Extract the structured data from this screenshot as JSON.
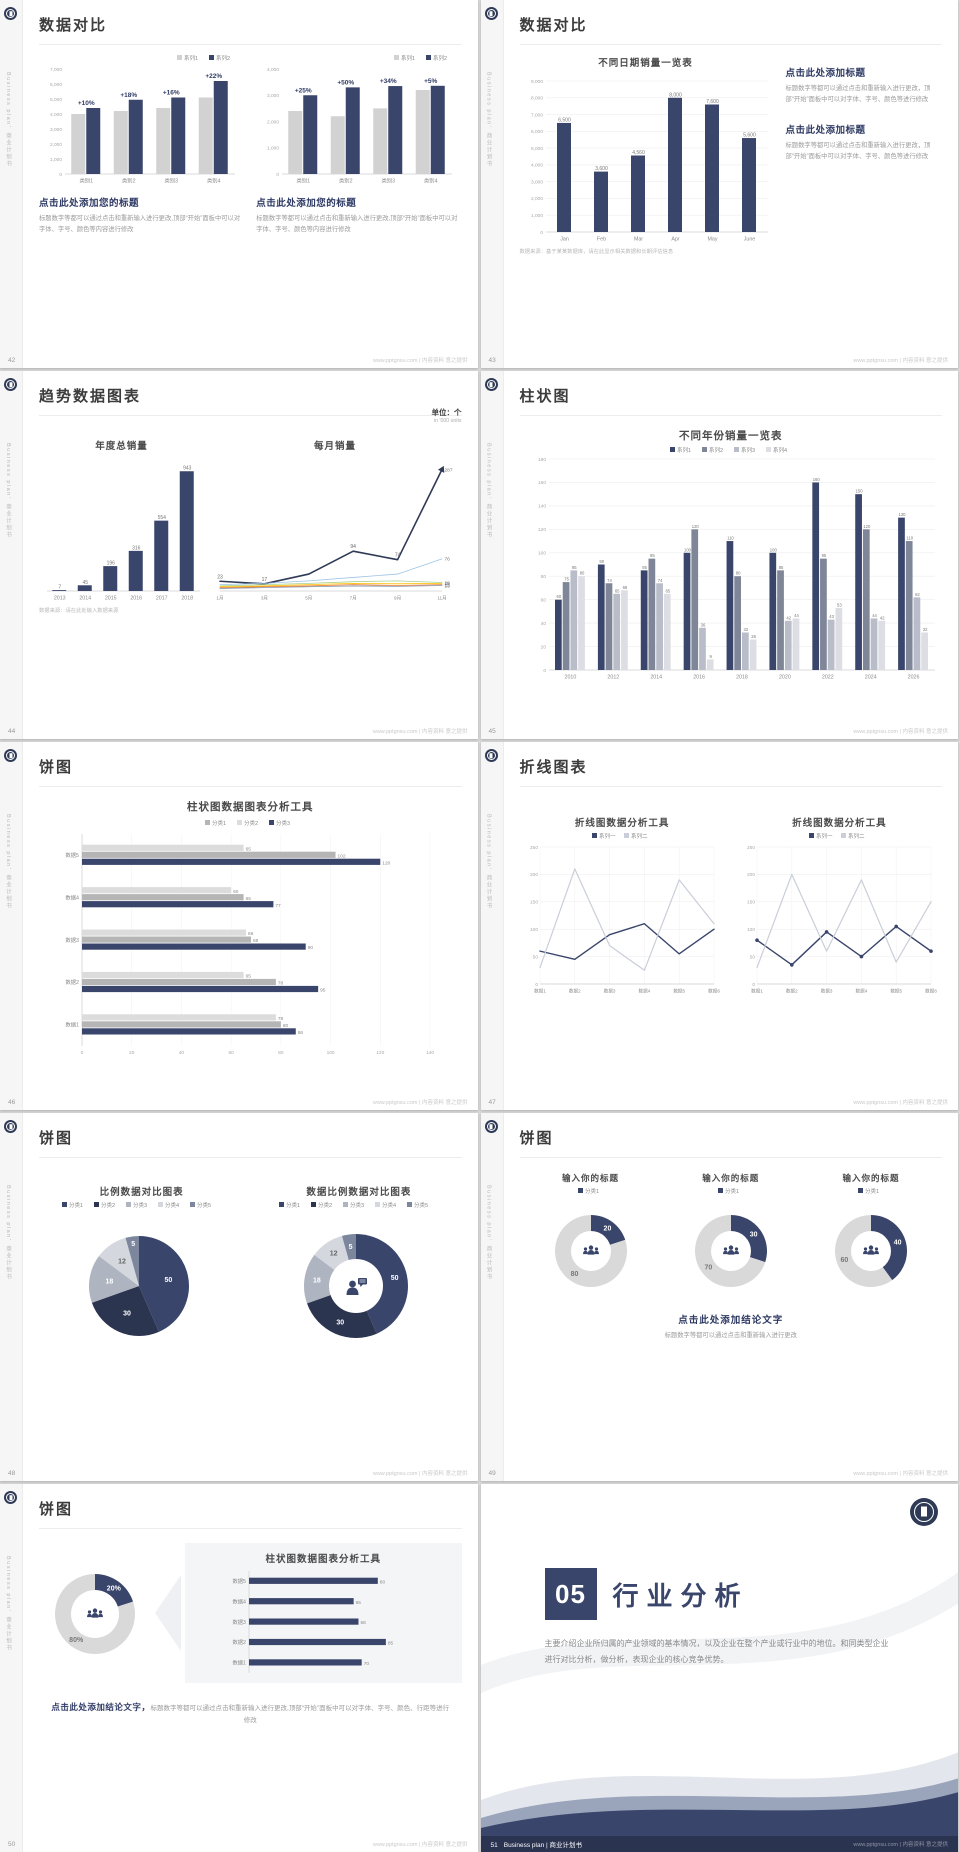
{
  "watermark": "www.pptgnsu.com | 内容资料 意之提供",
  "strip": {
    "vertical_text": "Business plan．商业计划书"
  },
  "colors": {
    "navy": "#39456b",
    "heading": "#2e3a64",
    "bar_gray": "#d2d2d2"
  },
  "slides": [
    {
      "page_no": "42",
      "title": "数据对比",
      "panels": [
        {
          "heading": "点击此处添加您的标题",
          "body": "标题数字等都可以通过点击和重新输入进行更改,顶部“开始”面板中可以对字体、字号、颜色等内容进行修改",
          "chart": {
            "type": "column",
            "ymax": 7000,
            "yticks": [
              0,
              1000,
              2000,
              3000,
              4000,
              5000,
              6000,
              7000
            ],
            "legend": [
              {
                "label": "系列1",
                "color": "#d2d2d2"
              },
              {
                "label": "系列2",
                "color": "#39456b"
              }
            ],
            "legendAlign": "right",
            "categories": [
              "类别1",
              "类别2",
              "类别3",
              "类别4"
            ],
            "series": [
              {
                "color": "#d2d2d2",
                "values": [
                  4000,
                  4200,
                  4400,
                  5100
                ]
              },
              {
                "color": "#39456b",
                "values": [
                  4400,
                  4950,
                  5100,
                  6200
                ]
              }
            ],
            "annotations": [
              {
                "i": 0,
                "text": "+10%"
              },
              {
                "i": 1,
                "text": "+18%"
              },
              {
                "i": 2,
                "text": "+16%"
              },
              {
                "i": 3,
                "text": "+22%"
              }
            ]
          }
        },
        {
          "heading": "点击此处添加您的标题",
          "body": "标题数字等都可以通过点击和重新输入进行更改,顶部“开始”面板中可以对字体、字号、颜色等内容进行修改",
          "chart": {
            "type": "column",
            "ymax": 4000,
            "yticks": [
              0,
              1000,
              2000,
              3000,
              4000
            ],
            "legend": [
              {
                "label": "系列1",
                "color": "#d2d2d2"
              },
              {
                "label": "系列2",
                "color": "#39456b"
              }
            ],
            "legendAlign": "right",
            "categories": [
              "类别1",
              "类别2",
              "类别3",
              "类别4"
            ],
            "series": [
              {
                "color": "#d2d2d2",
                "values": [
                  2400,
                  2200,
                  2500,
                  3200
                ]
              },
              {
                "color": "#39456b",
                "values": [
                  3000,
                  3300,
                  3350,
                  3360
                ]
              }
            ],
            "annotations": [
              {
                "i": 0,
                "text": "+25%"
              },
              {
                "i": 1,
                "text": "+50%"
              },
              {
                "i": 2,
                "text": "+34%"
              },
              {
                "i": 3,
                "text": "+5%"
              }
            ]
          }
        }
      ]
    },
    {
      "page_no": "43",
      "title": "数据对比",
      "chart_title": "不同日期销量一览表",
      "chart": {
        "type": "column",
        "ymax": 9000,
        "grid": true,
        "valueLabels": true,
        "yticks": [
          0,
          1000,
          2000,
          3000,
          4000,
          5000,
          6000,
          7000,
          8000,
          9000
        ],
        "categories": [
          "Jan",
          "Feb",
          "Mar",
          "Apr",
          "May",
          "June"
        ],
        "series": [
          {
            "color": "#39456b",
            "values": [
              6500,
              3600,
              4560,
              8000,
              7600,
              5600
            ]
          }
        ]
      },
      "source_note": "数据来源：基于某某数据库，请在此显示相关数据和长期评估信息",
      "blocks": [
        {
          "heading": "点击此处添加标题",
          "body": "标题数字等都可以通过点击和重新输入进行更改，顶部“开始”面板中可以对字体、字号、颜色等进行修改"
        },
        {
          "heading": "点击此处添加标题",
          "body": "标题数字等都可以通过点击和重新输入进行更改，顶部“开始”面板中可以对字体、字号、颜色等进行修改"
        }
      ]
    },
    {
      "page_no": "44",
      "title": "趋势数据图表",
      "unit_label": "单位：个",
      "unit_sub": "in '000 units",
      "left_title": "年度总销量",
      "right_title": "每月销量",
      "bar_chart": {
        "type": "column",
        "ymax": 1000,
        "valueLabels": true,
        "categories": [
          "2013",
          "2014",
          "2015",
          "2016",
          "2017",
          "2018"
        ],
        "series": [
          {
            "color": "#39456b",
            "values": [
              7,
              45,
              196,
              316,
              554,
              943
            ]
          }
        ]
      },
      "line_chart": {
        "type": "line",
        "ymax": 300,
        "endLabels": true,
        "categories": [
          "1月",
          "3月",
          "5月",
          "7月",
          "9月",
          "11月"
        ],
        "series": [
          {
            "color": "#2f3a56",
            "width": 1.6,
            "arrow": true,
            "values": [
              23,
              17,
              40,
              94,
              74,
              287
            ],
            "pointLabels": [
              "23",
              "17",
              null,
              "94",
              "74",
              null
            ],
            "endLabel": "287"
          },
          {
            "color": "#9dc3e6",
            "width": 0.8,
            "values": [
              15,
              18,
              24,
              32,
              40,
              76
            ],
            "endLabel": "76"
          },
          {
            "color": "#a9d18e",
            "width": 0.8,
            "values": [
              12,
              15,
              18,
              22,
              24,
              20
            ],
            "endLabel": "20"
          },
          {
            "color": "#ffc000",
            "width": 0.8,
            "values": [
              10,
              12,
              15,
              18,
              17,
              18
            ],
            "endLabel": "18"
          },
          {
            "color": "#ed7d31",
            "width": 0.8,
            "values": [
              8,
              10,
              12,
              15,
              13,
              15
            ],
            "endLabel": "15"
          },
          {
            "color": "#8497b0",
            "width": 0.8,
            "values": [
              6,
              8,
              10,
              12,
              11,
              13
            ],
            "endLabel": "13"
          }
        ]
      },
      "source_note": "数据来源：请在此处输入数据来源"
    },
    {
      "page_no": "45",
      "title": "柱状图",
      "chart_title": "不同年份销量一览表",
      "chart": {
        "type": "column",
        "ymax": 180,
        "grid": true,
        "valueLabels": true,
        "yticks": [
          0,
          20,
          40,
          60,
          80,
          100,
          120,
          140,
          160,
          180
        ],
        "legend": [
          {
            "label": "系列1",
            "color": "#39456b"
          },
          {
            "label": "系列2",
            "color": "#7f8698"
          },
          {
            "label": "系列3",
            "color": "#b9bdc9"
          },
          {
            "label": "系列4",
            "color": "#dcdee4"
          }
        ],
        "categories": [
          "2010",
          "2012",
          "2014",
          "2016",
          "2018",
          "2020",
          "2022",
          "2024",
          "2026"
        ],
        "series": [
          {
            "color": "#39456b",
            "values": [
              60,
              90,
              85,
              100,
              110,
              100,
              160,
              150,
              130
            ]
          },
          {
            "color": "#7f8698",
            "values": [
              75,
              74,
              95,
              120,
              80,
              85,
              95,
              120,
              110
            ]
          },
          {
            "color": "#b9bdc9",
            "values": [
              85,
              65,
              74,
              36,
              32,
              42,
              43,
              44,
              62
            ]
          },
          {
            "color": "#dcdee4",
            "values": [
              80,
              68,
              65,
              9,
              26,
              44,
              53,
              42,
              32
            ]
          }
        ]
      }
    },
    {
      "page_no": "46",
      "title": "饼图",
      "chart_title": "柱状图数据图表分析工具",
      "chart": {
        "type": "hbar",
        "xmax": 140,
        "valueLabels": true,
        "xticks": [
          0,
          20,
          40,
          60,
          80,
          100,
          120,
          140
        ],
        "legend": [
          {
            "label": "分类1",
            "color": "#b5b5b5"
          },
          {
            "label": "分类2",
            "color": "#dcdcdc"
          },
          {
            "label": "分类3",
            "color": "#39456b"
          }
        ],
        "categories": [
          "数据5",
          "数据4",
          "数据3",
          "数据2",
          "数据1"
        ],
        "series": [
          {
            "color": "#dcdcdc",
            "values": [
              65,
              60,
              66,
              65,
              78
            ]
          },
          {
            "color": "#b5b5b5",
            "values": [
              102,
              65,
              68,
              78,
              80
            ]
          },
          {
            "color": "#39456b",
            "values": [
              120,
              77,
              90,
              95,
              86
            ]
          }
        ]
      }
    },
    {
      "page_no": "47",
      "title": "折线图表",
      "panels": [
        {
          "chart_title": "折线图数据分析工具",
          "chart": {
            "type": "line",
            "ymax": 250,
            "grid": true,
            "vgrid": true,
            "yticks": [
              0,
              50,
              100,
              150,
              200,
              250
            ],
            "legend": [
              {
                "label": "系列一",
                "color": "#39456b"
              },
              {
                "label": "系列二",
                "color": "#c9ced8"
              }
            ],
            "categories": [
              "数据1",
              "数据2",
              "数据3",
              "数据4",
              "数据5",
              "数据6"
            ],
            "series": [
              {
                "color": "#39456b",
                "width": 1.4,
                "values": [
                  60,
                  45,
                  90,
                  110,
                  55,
                  100
                ]
              },
              {
                "color": "#c9ced8",
                "width": 1.2,
                "values": [
                  30,
                  210,
                  70,
                  25,
                  190,
                  110
                ]
              }
            ]
          }
        },
        {
          "chart_title": "折线图数据分析工具",
          "chart": {
            "type": "line",
            "ymax": 250,
            "grid": true,
            "vgrid": true,
            "yticks": [
              0,
              50,
              100,
              150,
              200,
              250
            ],
            "legend": [
              {
                "label": "系列一",
                "color": "#39456b"
              },
              {
                "label": "系列二",
                "color": "#c9ced8"
              }
            ],
            "categories": [
              "数据1",
              "数据2",
              "数据3",
              "数据4",
              "数据5",
              "数据6"
            ],
            "series": [
              {
                "color": "#39456b",
                "width": 1.4,
                "dots": true,
                "values": [
                  80,
                  35,
                  95,
                  50,
                  105,
                  60
                ]
              },
              {
                "color": "#c9ced8",
                "width": 1.2,
                "values": [
                  30,
                  200,
                  60,
                  190,
                  40,
                  150
                ]
              }
            ]
          }
        }
      ]
    },
    {
      "page_no": "48",
      "title": "饼图",
      "panels": [
        {
          "chart_title": "比例数据对比图表",
          "chart": {
            "type": "pie",
            "r": 50,
            "legend": [
              {
                "label": "分类1",
                "color": "#39456b"
              },
              {
                "label": "分类2",
                "color": "#2c3550"
              },
              {
                "label": "分类3",
                "color": "#aeb4c0"
              },
              {
                "label": "分类4",
                "color": "#d4d8de"
              },
              {
                "label": "分类5",
                "color": "#7c879e"
              }
            ],
            "slices": [
              {
                "v": 50,
                "color": "#39456b",
                "label": "50"
              },
              {
                "v": 30,
                "color": "#2c3550",
                "label": "30"
              },
              {
                "v": 18,
                "color": "#aeb4c0",
                "label": "18"
              },
              {
                "v": 12,
                "color": "#d4d8de",
                "label": "12",
                "labelColor": "#666666"
              },
              {
                "v": 5,
                "color": "#7c879e",
                "label": "5"
              }
            ]
          }
        },
        {
          "chart_title": "数据比例数据对比图表",
          "chart": {
            "type": "pie",
            "r": 52,
            "hole": 27,
            "icon": "person-chat",
            "legend": [
              {
                "label": "分类1",
                "color": "#39456b"
              },
              {
                "label": "分类2",
                "color": "#2c3550"
              },
              {
                "label": "分类3",
                "color": "#aeb4c0"
              },
              {
                "label": "分类4",
                "color": "#d4d8de"
              },
              {
                "label": "分类5",
                "color": "#7c879e"
              }
            ],
            "slices": [
              {
                "v": 50,
                "color": "#39456b",
                "label": "50"
              },
              {
                "v": 30,
                "color": "#2c3550",
                "label": "30"
              },
              {
                "v": 18,
                "color": "#aeb4c0",
                "label": "18"
              },
              {
                "v": 12,
                "color": "#d4d8de",
                "label": "12",
                "labelColor": "#666666"
              },
              {
                "v": 5,
                "color": "#7c879e",
                "label": "5"
              }
            ]
          }
        }
      ]
    },
    {
      "page_no": "49",
      "title": "饼图",
      "donuts": [
        {
          "chart_title": "输入你的标题",
          "chart": {
            "type": "pie",
            "r": 36,
            "hole": 20,
            "icon": "people",
            "legend": [
              {
                "label": "分类1",
                "color": "#39456b"
              }
            ],
            "slices": [
              {
                "v": 20,
                "color": "#39456b",
                "label": "20"
              },
              {
                "v": 80,
                "color": "#d9d9d9",
                "label": "80",
                "labelColor": "#777777"
              }
            ]
          }
        },
        {
          "chart_title": "输入你的标题",
          "chart": {
            "type": "pie",
            "r": 36,
            "hole": 20,
            "icon": "people",
            "legend": [
              {
                "label": "分类1",
                "color": "#39456b"
              }
            ],
            "slices": [
              {
                "v": 30,
                "color": "#39456b",
                "label": "30"
              },
              {
                "v": 70,
                "color": "#d9d9d9",
                "label": "70",
                "labelColor": "#777777"
              }
            ]
          }
        },
        {
          "chart_title": "输入你的标题",
          "chart": {
            "type": "pie",
            "r": 36,
            "hole": 20,
            "icon": "people",
            "legend": [
              {
                "label": "分类1",
                "color": "#39456b"
              }
            ],
            "slices": [
              {
                "v": 40,
                "color": "#39456b",
                "label": "40"
              },
              {
                "v": 60,
                "color": "#d9d9d9",
                "label": "60",
                "labelColor": "#777777"
              }
            ]
          }
        }
      ],
      "conclusion_heading": "点击此处添加结论文字",
      "conclusion_body": "标题数字等都可以通过点击和重新输入进行更改"
    },
    {
      "page_no": "50",
      "title": "饼图",
      "donut": {
        "type": "pie",
        "r": 40,
        "hole": 24,
        "icon": "people",
        "slices": [
          {
            "v": 20,
            "color": "#39456b",
            "label": "20%"
          },
          {
            "v": 80,
            "color": "#d9d9d9",
            "label": "80%",
            "labelColor": "#777777"
          }
        ]
      },
      "panel_title": "柱状图数据图表分析工具",
      "hbar": {
        "type": "hbar",
        "xmax": 100,
        "valueLabels": true,
        "categories": [
          "数据5",
          "数据4",
          "数据3",
          "数据2",
          "数据1"
        ],
        "series": [
          {
            "color": "#39456b",
            "values": [
              80,
              65,
              68,
              85,
              70
            ]
          }
        ]
      },
      "conclusion_bold": "点击此处添加结论文字，",
      "conclusion_rest": "标题数字等都可以通过点击和重新输入进行更改,顶部“开始”面板中可以对字体、字号、颜色、行距等进行修改"
    },
    {
      "page_no": "51",
      "number": "05",
      "title": "行业分析",
      "body": "主要介绍企业所归属的产业领域的基本情况，以及企业在整个产业或行业中的地位。和同类型企业进行对比分析，做分析，表现企业的核心竞争优势。",
      "footer_label": "Business plan | 商业计划书"
    }
  ]
}
